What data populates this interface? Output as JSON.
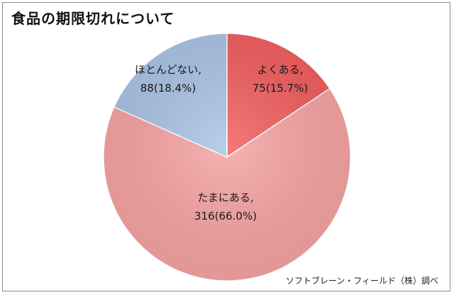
{
  "chart_data": {
    "type": "pie",
    "title": "食品の期限切れについて",
    "source": "ソフトブレーン・フィールド（株）調べ",
    "slices": [
      {
        "label": "よくある",
        "value": 75,
        "percent": 15.7,
        "color": "#f25c5c",
        "line1": "よくある,",
        "line2": "75(15.7%)"
      },
      {
        "label": "たまにある",
        "value": 316,
        "percent": 66.0,
        "color": "#f7a3a3",
        "line1": "たまにある,",
        "line2": "316(66.0%)"
      },
      {
        "label": "ほとんどない",
        "value": 88,
        "percent": 18.4,
        "color": "#aac3e6",
        "line1": "ほとんどない,",
        "line2": "88(18.4%)"
      }
    ]
  }
}
